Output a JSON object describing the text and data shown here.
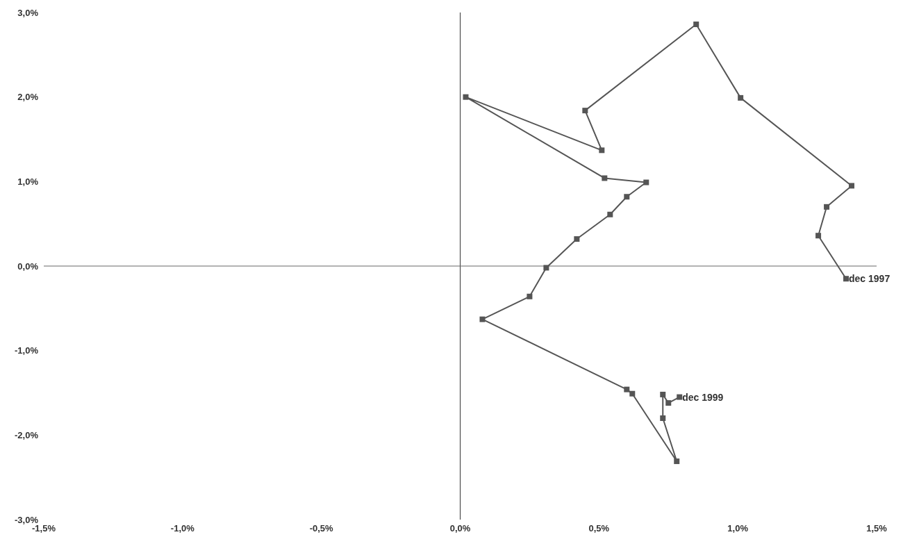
{
  "chart_data": {
    "type": "line",
    "marker": "square",
    "line_style": "solid",
    "color": "#555555",
    "ref_lines": [
      {
        "axis": "x",
        "value": 0,
        "color": "#333333"
      },
      {
        "axis": "y",
        "value": 0,
        "color": "#666666"
      }
    ],
    "x": [
      1.39,
      1.29,
      1.32,
      1.41,
      1.01,
      0.85,
      0.45,
      0.51,
      0.02,
      0.52,
      0.67,
      0.6,
      0.54,
      0.42,
      0.31,
      0.25,
      0.08,
      0.6,
      0.62,
      0.78,
      0.73,
      0.73,
      0.75,
      0.79
    ],
    "values": [
      -0.15,
      0.36,
      0.7,
      0.95,
      1.99,
      2.86,
      1.84,
      1.37,
      2.0,
      1.04,
      0.99,
      0.82,
      0.61,
      0.32,
      -0.02,
      -0.36,
      -0.63,
      -1.46,
      -1.51,
      -2.31,
      -1.8,
      -1.52,
      -1.62,
      -1.55
    ],
    "xlim": [
      -1.5,
      1.5
    ],
    "xticks": [
      {
        "value": -1.5,
        "label": "-1,5%"
      },
      {
        "value": -1,
        "label": "-1,0%"
      },
      {
        "value": -0.5,
        "label": "-0,5%"
      },
      {
        "value": 0,
        "label": "0,0%"
      },
      {
        "value": 0.5,
        "label": "0,5%"
      },
      {
        "value": 1,
        "label": "1,0%"
      },
      {
        "value": 1.5,
        "label": "1,5%"
      }
    ],
    "ylim": [
      -3,
      3
    ],
    "yticks": [
      {
        "value": -3,
        "label": "-3,0%"
      },
      {
        "value": -2,
        "label": "-2,0%"
      },
      {
        "value": -1,
        "label": "-1,0%"
      },
      {
        "value": 0,
        "label": "0,0%"
      },
      {
        "value": 1,
        "label": "1,0%"
      },
      {
        "value": 2,
        "label": "2,0%"
      },
      {
        "value": 3,
        "label": "3,0%"
      }
    ],
    "annotations": [
      {
        "text": "dec 1997",
        "x": 1.39,
        "y": -0.15
      },
      {
        "text": "dec 1999",
        "x": 0.79,
        "y": -1.55
      }
    ]
  }
}
